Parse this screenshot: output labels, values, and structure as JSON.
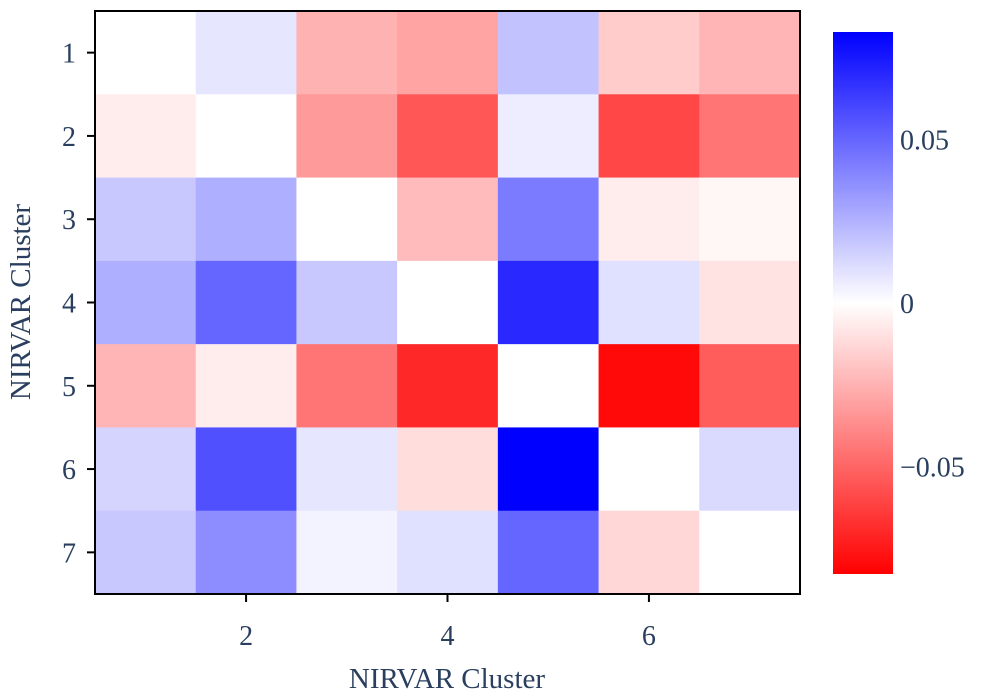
{
  "chart_data": {
    "type": "heatmap",
    "title": "",
    "xlabel": "NIRVAR Cluster",
    "ylabel": "NIRVAR Cluster",
    "x": [
      1,
      2,
      3,
      4,
      5,
      6,
      7
    ],
    "y": [
      1,
      2,
      3,
      4,
      5,
      6,
      7
    ],
    "x_tick_labels": [
      "2",
      "4",
      "6"
    ],
    "y_tick_labels": [
      "1",
      "2",
      "3",
      "4",
      "5",
      "6",
      "7"
    ],
    "z": [
      [
        0.0,
        0.008,
        -0.025,
        -0.03,
        0.02,
        -0.017,
        -0.024
      ],
      [
        -0.006,
        0.0,
        -0.033,
        -0.055,
        0.006,
        -0.06,
        -0.045
      ],
      [
        0.018,
        0.026,
        0.0,
        -0.022,
        0.043,
        -0.006,
        -0.003
      ],
      [
        0.026,
        0.05,
        0.018,
        0.0,
        0.07,
        0.01,
        -0.009
      ],
      [
        -0.024,
        -0.006,
        -0.045,
        -0.07,
        0.0,
        -0.08,
        -0.053
      ],
      [
        0.014,
        0.057,
        0.008,
        -0.011,
        0.083,
        0.0,
        0.012
      ],
      [
        0.018,
        0.037,
        0.004,
        0.01,
        0.05,
        -0.013,
        0.0
      ]
    ],
    "colorscale": {
      "low": "#ff0000",
      "mid": "#ffffff",
      "high": "#0000ff"
    },
    "zmin": -0.083,
    "zmax": 0.083,
    "colorbar_ticks": [
      {
        "value": 0.05,
        "label": "0.05"
      },
      {
        "value": 0,
        "label": "0"
      },
      {
        "value": -0.05,
        "label": "−0.05"
      }
    ]
  }
}
